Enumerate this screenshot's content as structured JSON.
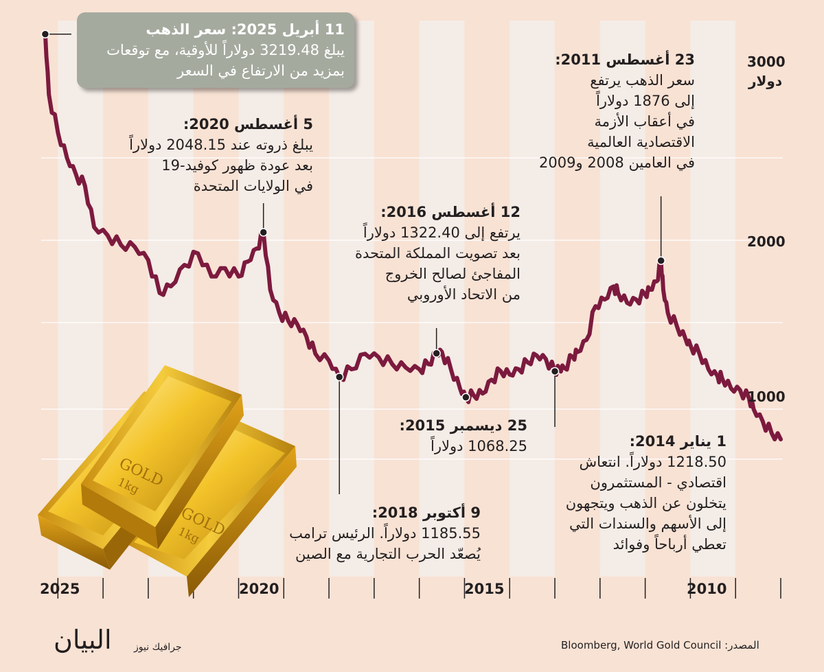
{
  "colors": {
    "background": "#f8e2d4",
    "band": "#f4ece6",
    "line": "#7c1a3e",
    "callout": "#a5aa9f",
    "text": "#231f20"
  },
  "chart_data": {
    "type": "line",
    "title": "",
    "ylabel": "دولار",
    "x_direction": "right-to-left",
    "xlim": [
      2009,
      2025.4
    ],
    "ylim": [
      0,
      3400
    ],
    "y_ticks": [
      {
        "label": "3000",
        "value": 3000
      },
      {
        "label": "2000",
        "value": 2000
      },
      {
        "label": "1000",
        "value": 1000
      }
    ],
    "x_ticks": [
      {
        "label": "2025",
        "value": 2025
      },
      {
        "label": "2020",
        "value": 2020
      },
      {
        "label": "2015",
        "value": 2015
      },
      {
        "label": "2010",
        "value": 2010
      }
    ],
    "series": [
      {
        "name": "سعر الذهب",
        "x": [
          2009.0,
          2009.2,
          2009.4,
          2009.6,
          2009.7,
          2009.9,
          2010.1,
          2010.3,
          2010.4,
          2010.6,
          2010.8,
          2011.0,
          2011.1,
          2011.3,
          2011.5,
          2011.6,
          2011.65,
          2011.75,
          2011.9,
          2012.0,
          2012.2,
          2012.4,
          2012.6,
          2012.7,
          2012.9,
          2013.1,
          2013.3,
          2013.5,
          2013.6,
          2013.8,
          2013.9,
          2014.0,
          2014.2,
          2014.4,
          2014.6,
          2014.8,
          2015.0,
          2015.2,
          2015.4,
          2015.6,
          2015.8,
          2015.97,
          2016.1,
          2016.3,
          2016.5,
          2016.62,
          2016.8,
          2017.0,
          2017.3,
          2017.6,
          2017.9,
          2018.2,
          2018.5,
          2018.77,
          2019.0,
          2019.3,
          2019.5,
          2019.7,
          2019.9,
          2020.1,
          2020.3,
          2020.45,
          2020.6,
          2020.8,
          2021.0,
          2021.3,
          2021.6,
          2021.9,
          2022.2,
          2022.5,
          2022.75,
          2023.0,
          2023.3,
          2023.6,
          2023.9,
          2024.2,
          2024.4,
          2024.6,
          2024.8,
          2025.0,
          2025.2,
          2025.28
        ],
        "y": [
          900,
          920,
          960,
          1000,
          1060,
          1110,
          1120,
          1180,
          1190,
          1230,
          1320,
          1370,
          1400,
          1480,
          1560,
          1700,
          1876,
          1750,
          1700,
          1670,
          1640,
          1620,
          1680,
          1720,
          1640,
          1600,
          1400,
          1330,
          1300,
          1240,
          1230,
          1218.5,
          1290,
          1310,
          1270,
          1230,
          1200,
          1220,
          1170,
          1090,
          1080,
          1068.25,
          1120,
          1230,
          1330,
          1322.4,
          1260,
          1230,
          1240,
          1260,
          1300,
          1320,
          1230,
          1185.55,
          1280,
          1320,
          1420,
          1490,
          1510,
          1560,
          1700,
          2048.15,
          1950,
          1870,
          1780,
          1830,
          1780,
          1920,
          1850,
          1720,
          1680,
          1880,
          1960,
          1970,
          2030,
          2080,
          2330,
          2400,
          2500,
          2640,
          2850,
          3219.48
        ]
      }
    ],
    "annotations": {
      "latest": {
        "title": "11 أبريل 2025: سعر الذهب",
        "lines": [
          "يبلغ 3219.48 دولاراً للأوقية، مع توقعات",
          "بمزيد من الارتفاع في السعر"
        ]
      },
      "aug2020": {
        "title": "5 أغسطس 2020:",
        "lines": [
          "يبلغ ذروته عند 2048.15 دولاراً",
          "بعد عودة ظهور كوفيد-19",
          "في الولايات المتحدة"
        ]
      },
      "aug2016": {
        "title": "12 أغسطس 2016:",
        "lines": [
          "يرتفع إلى 1322.40 دولاراً",
          "بعد تصويت المملكة المتحدة",
          "المفاجئ لصالح الخروج",
          "من الاتحاد الأوروبي"
        ]
      },
      "aug2011": {
        "title": "23 أغسطس 2011:",
        "lines": [
          "سعر الذهب يرتفع",
          "إلى 1876 دولاراً",
          "في أعقاب الأزمة",
          "الاقتصادية العالمية",
          "في العامين 2008 و2009"
        ]
      },
      "dec2015": {
        "title": "25 ديسمبر 2015:",
        "lines": [
          "1068.25 دولاراً"
        ]
      },
      "jan2014": {
        "title": "1 يناير 2014:",
        "lines": [
          "1218.50 دولاراً. انتعاش",
          "اقتصادي - المستثمرون",
          "يتخلون عن الذهب ويتجهون",
          "إلى الأسهم والسندات التي",
          "تعطي أرباحاً وفوائد"
        ]
      },
      "oct2018": {
        "title": "9 أكتوبر 2018:",
        "lines": [
          "1185.55 دولاراً. الرئيس ترامب",
          "يُصعّد الحرب التجارية مع الصين"
        ]
      }
    }
  },
  "illustration": {
    "name": "gold-bars",
    "bar_text": "GOLD",
    "bar_weight": "1kg"
  },
  "footer": {
    "source": "المصدر: Bloomberg, World Gold Council",
    "credit": "جرافيك نيوز",
    "logo": "البيان"
  }
}
